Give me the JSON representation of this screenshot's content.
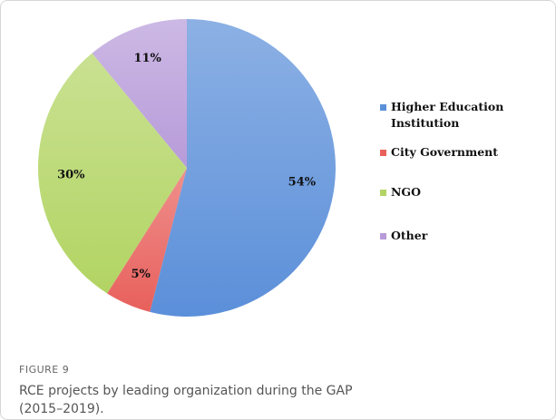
{
  "figure_label": "FIGURE 9",
  "caption": "RCE projects by leading organization during the GAP (2015–2019).",
  "chart_data": {
    "type": "pie",
    "categories": [
      "Higher Education Institution",
      "City Government",
      "NGO",
      "Other"
    ],
    "values": [
      54,
      5,
      30,
      11
    ],
    "value_labels": [
      "54%",
      "5%",
      "30%",
      "11%"
    ],
    "colors": [
      "#5b8fd9",
      "#e8605c",
      "#b2d463",
      "#b79bd9"
    ],
    "legend": "right"
  }
}
